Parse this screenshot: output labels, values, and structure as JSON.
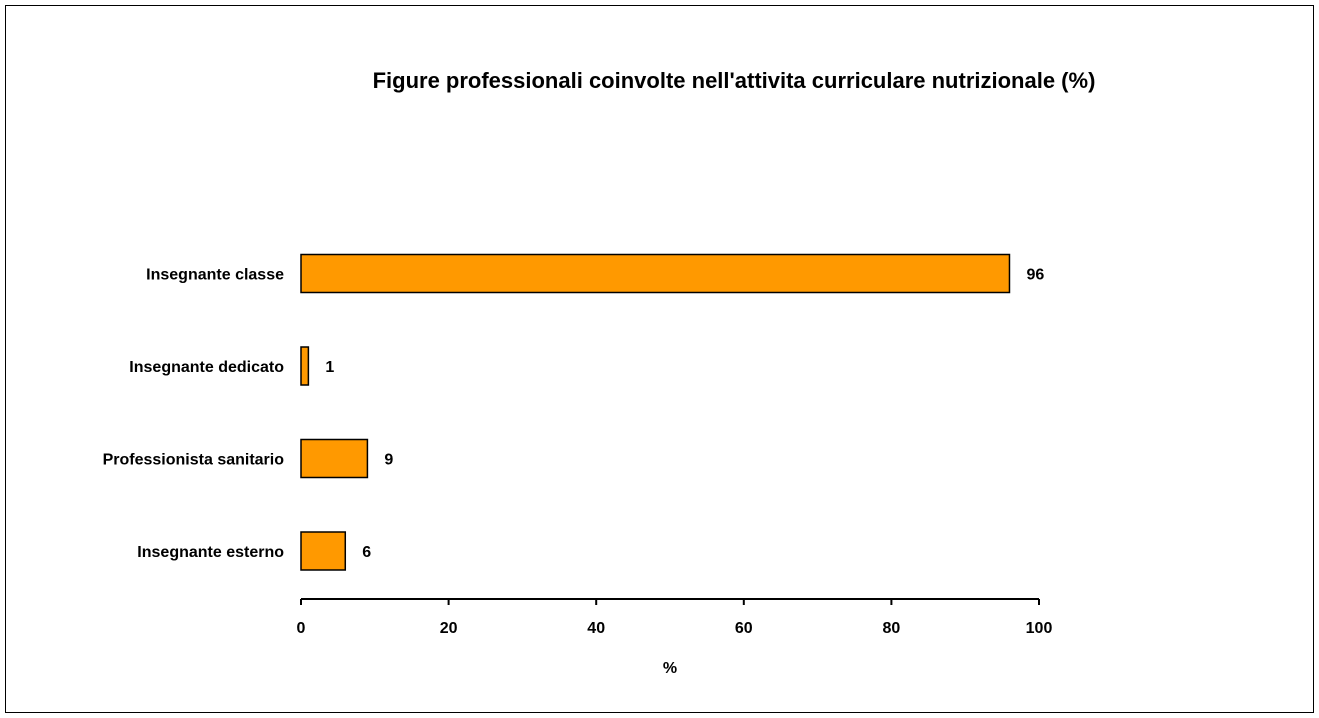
{
  "chart_data": {
    "type": "bar",
    "orientation": "horizontal",
    "title": "Figure professionali coinvolte nell'attivita curriculare nutrizionale (%)",
    "xlabel": "%",
    "ylabel": "",
    "categories": [
      "Insegnante classe",
      "Insegnante dedicato",
      "Professionista sanitario",
      "Insegnante esterno"
    ],
    "values": [
      96,
      1,
      9,
      6
    ],
    "data_labels": [
      "96",
      "1",
      "9",
      "6"
    ],
    "xlim": [
      0,
      100
    ],
    "xticks": [
      0,
      20,
      40,
      60,
      80,
      100
    ],
    "grid": false,
    "legend": "none",
    "colors": {
      "bar": "#ff9900",
      "bar_edge": "#000000",
      "text": "#000000"
    }
  }
}
